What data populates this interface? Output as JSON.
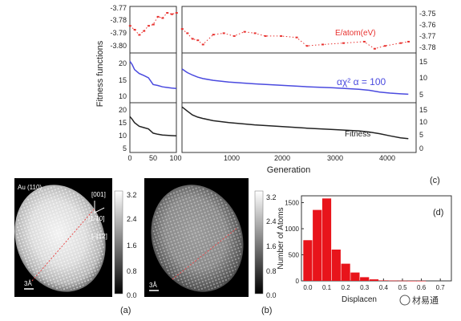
{
  "chart_data": [
    {
      "type": "line",
      "panel": "(c)",
      "ylabel": "Fitness functions",
      "xlabel": "Generation",
      "x_ticks": [
        "0",
        "50",
        "100",
        "1000",
        "2000",
        "3000",
        "4000"
      ],
      "rows": [
        {
          "name": "E/atom(eV)",
          "color": "#e8322f",
          "y_ticks_left": [
            "-3.77",
            "-3.78",
            "-3.79",
            "-3.80"
          ],
          "y_ticks_right": [
            "-3.75",
            "-3.76",
            "-3.77",
            "-3.78"
          ],
          "left_series": {
            "x": [
              0,
              10,
              20,
              30,
              40,
              50,
              60,
              70,
              80,
              90,
              100
            ],
            "y": [
              -3.782,
              -3.785,
              -3.789,
              -3.786,
              -3.782,
              -3.781,
              -3.775,
              -3.776,
              -3.772,
              -3.773,
              -3.772
            ]
          },
          "right_series": {
            "x": [
              100,
              200,
              300,
              400,
              500,
              700,
              900,
              1100,
              1300,
              1500,
              1700,
              2000,
              2300,
              2500,
              2800,
              3200,
              3600,
              3800,
              4000,
              4300,
              4450
            ],
            "y": [
              -3.764,
              -3.767,
              -3.771,
              -3.772,
              -3.775,
              -3.768,
              -3.767,
              -3.769,
              -3.766,
              -3.767,
              -3.769,
              -3.769,
              -3.77,
              -3.776,
              -3.775,
              -3.774,
              -3.773,
              -3.778,
              -3.776,
              -3.774,
              -3.773
            ]
          }
        },
        {
          "name": "αχ² α = 100",
          "color": "#4a4adf",
          "y_ticks_left": [
            "20",
            "15",
            "10"
          ],
          "y_ticks_right": [
            "15",
            "10",
            "5"
          ],
          "left_series": {
            "x": [
              0,
              5,
              10,
              20,
              30,
              40,
              50,
              60,
              70,
              80,
              90,
              100
            ],
            "y": [
              20.5,
              19.5,
              18,
              16.8,
              16.2,
              15.5,
              13.5,
              13.2,
              12.8,
              12.6,
              12.4,
              12.3
            ]
          },
          "right_series": {
            "x": [
              100,
              200,
              300,
              400,
              500,
              700,
              1000,
              1500,
              2000,
              2500,
              3000,
              3500,
              3700,
              3900,
              4100,
              4300,
              4450
            ],
            "y": [
              12.5,
              11.5,
              10.8,
              10.2,
              9.8,
              9.3,
              8.8,
              8.3,
              7.9,
              7.5,
              7.2,
              6.8,
              6.5,
              6.0,
              5.7,
              5.5,
              5.4
            ]
          }
        },
        {
          "name": "Fitness",
          "color": "#222222",
          "y_ticks_left": [
            "20",
            "15",
            "10",
            "5"
          ],
          "y_ticks_right": [
            "15",
            "10",
            "5",
            "0"
          ],
          "left_series": {
            "x": [
              0,
              5,
              10,
              20,
              30,
              40,
              50,
              60,
              70,
              80,
              90,
              100
            ],
            "y": [
              16,
              15,
              13.8,
              12.5,
              12.0,
              11.5,
              10.0,
              9.6,
              9.3,
              9.2,
              9.1,
              9.0
            ]
          },
          "right_series": {
            "x": [
              100,
              200,
              300,
              400,
              500,
              700,
              1000,
              1500,
              2000,
              2500,
              3000,
              3500,
              3700,
              3900,
              4100,
              4300,
              4450
            ],
            "y": [
              16.5,
              15.0,
              13.6,
              12.8,
              12.3,
              11.5,
              10.8,
              10.0,
              9.4,
              8.8,
              8.3,
              7.8,
              7.4,
              6.8,
              6.0,
              5.3,
              5.0
            ]
          }
        }
      ]
    },
    {
      "type": "heatmap",
      "panel": "(a)",
      "texts": [
        "Au (110)",
        "[001]",
        "[1-10]",
        "[-112]",
        "3Å"
      ],
      "colorbar_ticks": [
        "3.2",
        "2.4",
        "1.6",
        "0.8",
        "0.0"
      ]
    },
    {
      "type": "heatmap",
      "panel": "(b)",
      "texts": [
        "3Å"
      ],
      "colorbar_ticks": [
        "3.2",
        "2.4",
        "1.6",
        "0.8",
        "0.0"
      ]
    },
    {
      "type": "bar",
      "panel": "(d)",
      "ylabel": "Number of Atoms",
      "xlabel": "Displacen",
      "categories": [
        "0.00",
        "0.05",
        "0.10",
        "0.15",
        "0.20",
        "0.25",
        "0.30",
        "0.35",
        "0.40",
        "0.45",
        "0.50",
        "0.55",
        "0.60",
        "0.65",
        "0.70"
      ],
      "values": [
        780,
        1360,
        1580,
        600,
        330,
        160,
        70,
        30,
        10,
        6,
        4,
        2,
        1,
        0,
        0
      ],
      "ylim": [
        0,
        1600
      ],
      "y_ticks": [
        "0",
        "500",
        "1000",
        "1500"
      ],
      "x_ticks": [
        "0.0",
        "0.1",
        "0.2",
        "0.3",
        "0.4",
        "0.5",
        "0.6",
        "0.7"
      ],
      "bar_color": "#e8141b"
    }
  ],
  "watermark": "材易通"
}
